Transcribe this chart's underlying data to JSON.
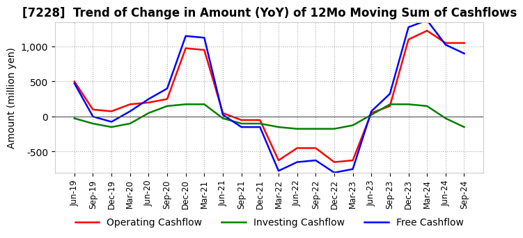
{
  "title": "[7228]  Trend of Change in Amount (YoY) of 12Mo Moving Sum of Cashflows",
  "ylabel": "Amount (million yen)",
  "x_labels": [
    "Jun-19",
    "Sep-19",
    "Dec-19",
    "Mar-20",
    "Jun-20",
    "Sep-20",
    "Dec-20",
    "Mar-21",
    "Jun-21",
    "Sep-21",
    "Dec-21",
    "Mar-22",
    "Jun-22",
    "Sep-22",
    "Dec-22",
    "Mar-23",
    "Jun-23",
    "Sep-23",
    "Dec-23",
    "Mar-24",
    "Jun-24",
    "Sep-24"
  ],
  "operating": [
    500,
    100,
    75,
    175,
    200,
    250,
    975,
    950,
    50,
    -50,
    -50,
    -625,
    -450,
    -450,
    -650,
    -625,
    50,
    150,
    1100,
    1225,
    1050,
    1050
  ],
  "investing": [
    -25,
    -100,
    -150,
    -100,
    50,
    150,
    175,
    175,
    -25,
    -100,
    -100,
    -150,
    -175,
    -175,
    -175,
    -125,
    25,
    175,
    175,
    150,
    -25,
    -150
  ],
  "free": [
    475,
    0,
    -75,
    75,
    250,
    400,
    1150,
    1125,
    25,
    -150,
    -150,
    -775,
    -650,
    -625,
    -800,
    -750,
    75,
    325,
    1275,
    1375,
    1025,
    900
  ],
  "operating_color": "#ff0000",
  "investing_color": "#008000",
  "free_color": "#0000ff",
  "ylim": [
    -800,
    1350
  ],
  "yticks": [
    -500,
    0,
    500,
    1000
  ],
  "grid_color": "#aaaaaa",
  "background_color": "#ffffff",
  "title_fontsize": 12,
  "axis_fontsize": 10,
  "tick_fontsize": 8.5,
  "linewidth": 1.8
}
